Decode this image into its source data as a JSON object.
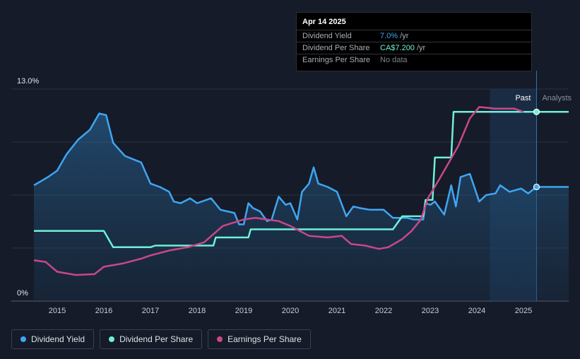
{
  "tooltip": {
    "date": "Apr 14 2025",
    "rows": [
      {
        "label": "Dividend Yield",
        "value": "7.0%",
        "unit": " /yr",
        "color": "#3ea6f2"
      },
      {
        "label": "Dividend Per Share",
        "value": "CA$7.200",
        "unit": " /yr",
        "color": "#6ff0d8"
      },
      {
        "label": "Earnings Per Share",
        "value": "No data",
        "unit": "",
        "color": "#7d838c"
      }
    ]
  },
  "regions": {
    "past": "Past",
    "analysts": "Analysts"
  },
  "legend": [
    {
      "label": "Dividend Yield",
      "color": "#3ea6f2"
    },
    {
      "label": "Dividend Per Share",
      "color": "#6ff0d8"
    },
    {
      "label": "Earnings Per Share",
      "color": "#c9478a"
    }
  ],
  "chart_data": {
    "type": "line",
    "y_tick_labels": [
      "13.0%",
      "0%"
    ],
    "ylim": [
      0,
      13
    ],
    "xlim": [
      2014.5,
      2025.97
    ],
    "x_tick_labels": [
      "2015",
      "2016",
      "2017",
      "2018",
      "2019",
      "2020",
      "2021",
      "2022",
      "2023",
      "2024",
      "2025"
    ],
    "past_region_start": 2024.28,
    "highlight_date": 2025.28,
    "grid": true,
    "legend_position": "bottom-left",
    "series": [
      {
        "name": "Dividend Yield",
        "color": "#3ea6f2",
        "fill": true,
        "points": [
          [
            2014.5,
            7.1
          ],
          [
            2014.8,
            7.6
          ],
          [
            2015.0,
            8.0
          ],
          [
            2015.2,
            9.0
          ],
          [
            2015.45,
            9.9
          ],
          [
            2015.7,
            10.5
          ],
          [
            2015.9,
            11.5
          ],
          [
            2016.05,
            11.4
          ],
          [
            2016.2,
            9.7
          ],
          [
            2016.45,
            8.9
          ],
          [
            2016.8,
            8.5
          ],
          [
            2017.0,
            7.2
          ],
          [
            2017.2,
            7.0
          ],
          [
            2017.4,
            6.7
          ],
          [
            2017.5,
            6.1
          ],
          [
            2017.65,
            6.0
          ],
          [
            2017.85,
            6.3
          ],
          [
            2018.0,
            6.0
          ],
          [
            2018.3,
            6.3
          ],
          [
            2018.5,
            5.6
          ],
          [
            2018.65,
            5.5
          ],
          [
            2018.8,
            5.4
          ],
          [
            2018.9,
            4.7
          ],
          [
            2019.0,
            4.7
          ],
          [
            2019.1,
            6.0
          ],
          [
            2019.2,
            5.7
          ],
          [
            2019.35,
            5.5
          ],
          [
            2019.5,
            4.9
          ],
          [
            2019.6,
            5.0
          ],
          [
            2019.75,
            6.4
          ],
          [
            2019.9,
            5.9
          ],
          [
            2020.0,
            6.0
          ],
          [
            2020.15,
            5.0
          ],
          [
            2020.25,
            6.7
          ],
          [
            2020.4,
            7.2
          ],
          [
            2020.5,
            8.2
          ],
          [
            2020.6,
            7.2
          ],
          [
            2020.8,
            7.0
          ],
          [
            2021.0,
            6.7
          ],
          [
            2021.2,
            5.2
          ],
          [
            2021.35,
            5.8
          ],
          [
            2021.5,
            5.7
          ],
          [
            2021.7,
            5.6
          ],
          [
            2022.0,
            5.6
          ],
          [
            2022.2,
            5.1
          ],
          [
            2022.5,
            5.1
          ],
          [
            2022.65,
            5.0
          ],
          [
            2022.85,
            5.0
          ],
          [
            2022.9,
            6.0
          ],
          [
            2023.0,
            5.9
          ],
          [
            2023.1,
            6.1
          ],
          [
            2023.3,
            5.3
          ],
          [
            2023.45,
            7.1
          ],
          [
            2023.55,
            5.8
          ],
          [
            2023.65,
            7.6
          ],
          [
            2023.85,
            7.8
          ],
          [
            2024.05,
            6.1
          ],
          [
            2024.2,
            6.5
          ],
          [
            2024.4,
            6.6
          ],
          [
            2024.5,
            7.1
          ],
          [
            2024.7,
            6.7
          ],
          [
            2024.95,
            6.9
          ],
          [
            2025.1,
            6.6
          ],
          [
            2025.28,
            7.0
          ],
          [
            2025.97,
            7.0
          ]
        ]
      },
      {
        "name": "Dividend Per Share",
        "color": "#6ff0d8",
        "fill": false,
        "points": [
          [
            2014.5,
            4.3
          ],
          [
            2016.0,
            4.3
          ],
          [
            2016.2,
            3.3
          ],
          [
            2017.0,
            3.3
          ],
          [
            2017.1,
            3.4
          ],
          [
            2018.35,
            3.4
          ],
          [
            2018.4,
            3.9
          ],
          [
            2019.1,
            3.9
          ],
          [
            2019.15,
            4.4
          ],
          [
            2022.2,
            4.4
          ],
          [
            2022.4,
            5.2
          ],
          [
            2022.85,
            5.2
          ],
          [
            2022.9,
            6.2
          ],
          [
            2023.05,
            6.2
          ],
          [
            2023.1,
            8.8
          ],
          [
            2023.45,
            8.8
          ],
          [
            2023.5,
            11.6
          ],
          [
            2025.97,
            11.6
          ]
        ]
      },
      {
        "name": "Earnings Per Share",
        "color": "#c9478a",
        "fill": false,
        "points": [
          [
            2014.5,
            2.5
          ],
          [
            2014.75,
            2.4
          ],
          [
            2015.0,
            1.8
          ],
          [
            2015.4,
            1.6
          ],
          [
            2015.8,
            1.65
          ],
          [
            2016.0,
            2.1
          ],
          [
            2016.4,
            2.3
          ],
          [
            2016.8,
            2.6
          ],
          [
            2017.0,
            2.8
          ],
          [
            2017.4,
            3.1
          ],
          [
            2017.8,
            3.3
          ],
          [
            2018.15,
            3.6
          ],
          [
            2018.55,
            4.6
          ],
          [
            2019.0,
            5.0
          ],
          [
            2019.25,
            5.1
          ],
          [
            2019.5,
            5.0
          ],
          [
            2019.75,
            4.9
          ],
          [
            2020.0,
            4.6
          ],
          [
            2020.4,
            4.0
          ],
          [
            2020.8,
            3.9
          ],
          [
            2021.1,
            4.0
          ],
          [
            2021.3,
            3.5
          ],
          [
            2021.6,
            3.4
          ],
          [
            2021.9,
            3.2
          ],
          [
            2022.1,
            3.3
          ],
          [
            2022.4,
            3.8
          ],
          [
            2022.6,
            4.3
          ],
          [
            2022.8,
            5.0
          ],
          [
            2022.95,
            6.3
          ],
          [
            2023.2,
            7.5
          ],
          [
            2023.6,
            9.5
          ],
          [
            2023.85,
            11.2
          ],
          [
            2024.05,
            11.9
          ],
          [
            2024.4,
            11.8
          ],
          [
            2024.8,
            11.8
          ],
          [
            2025.0,
            11.6
          ]
        ]
      }
    ]
  }
}
